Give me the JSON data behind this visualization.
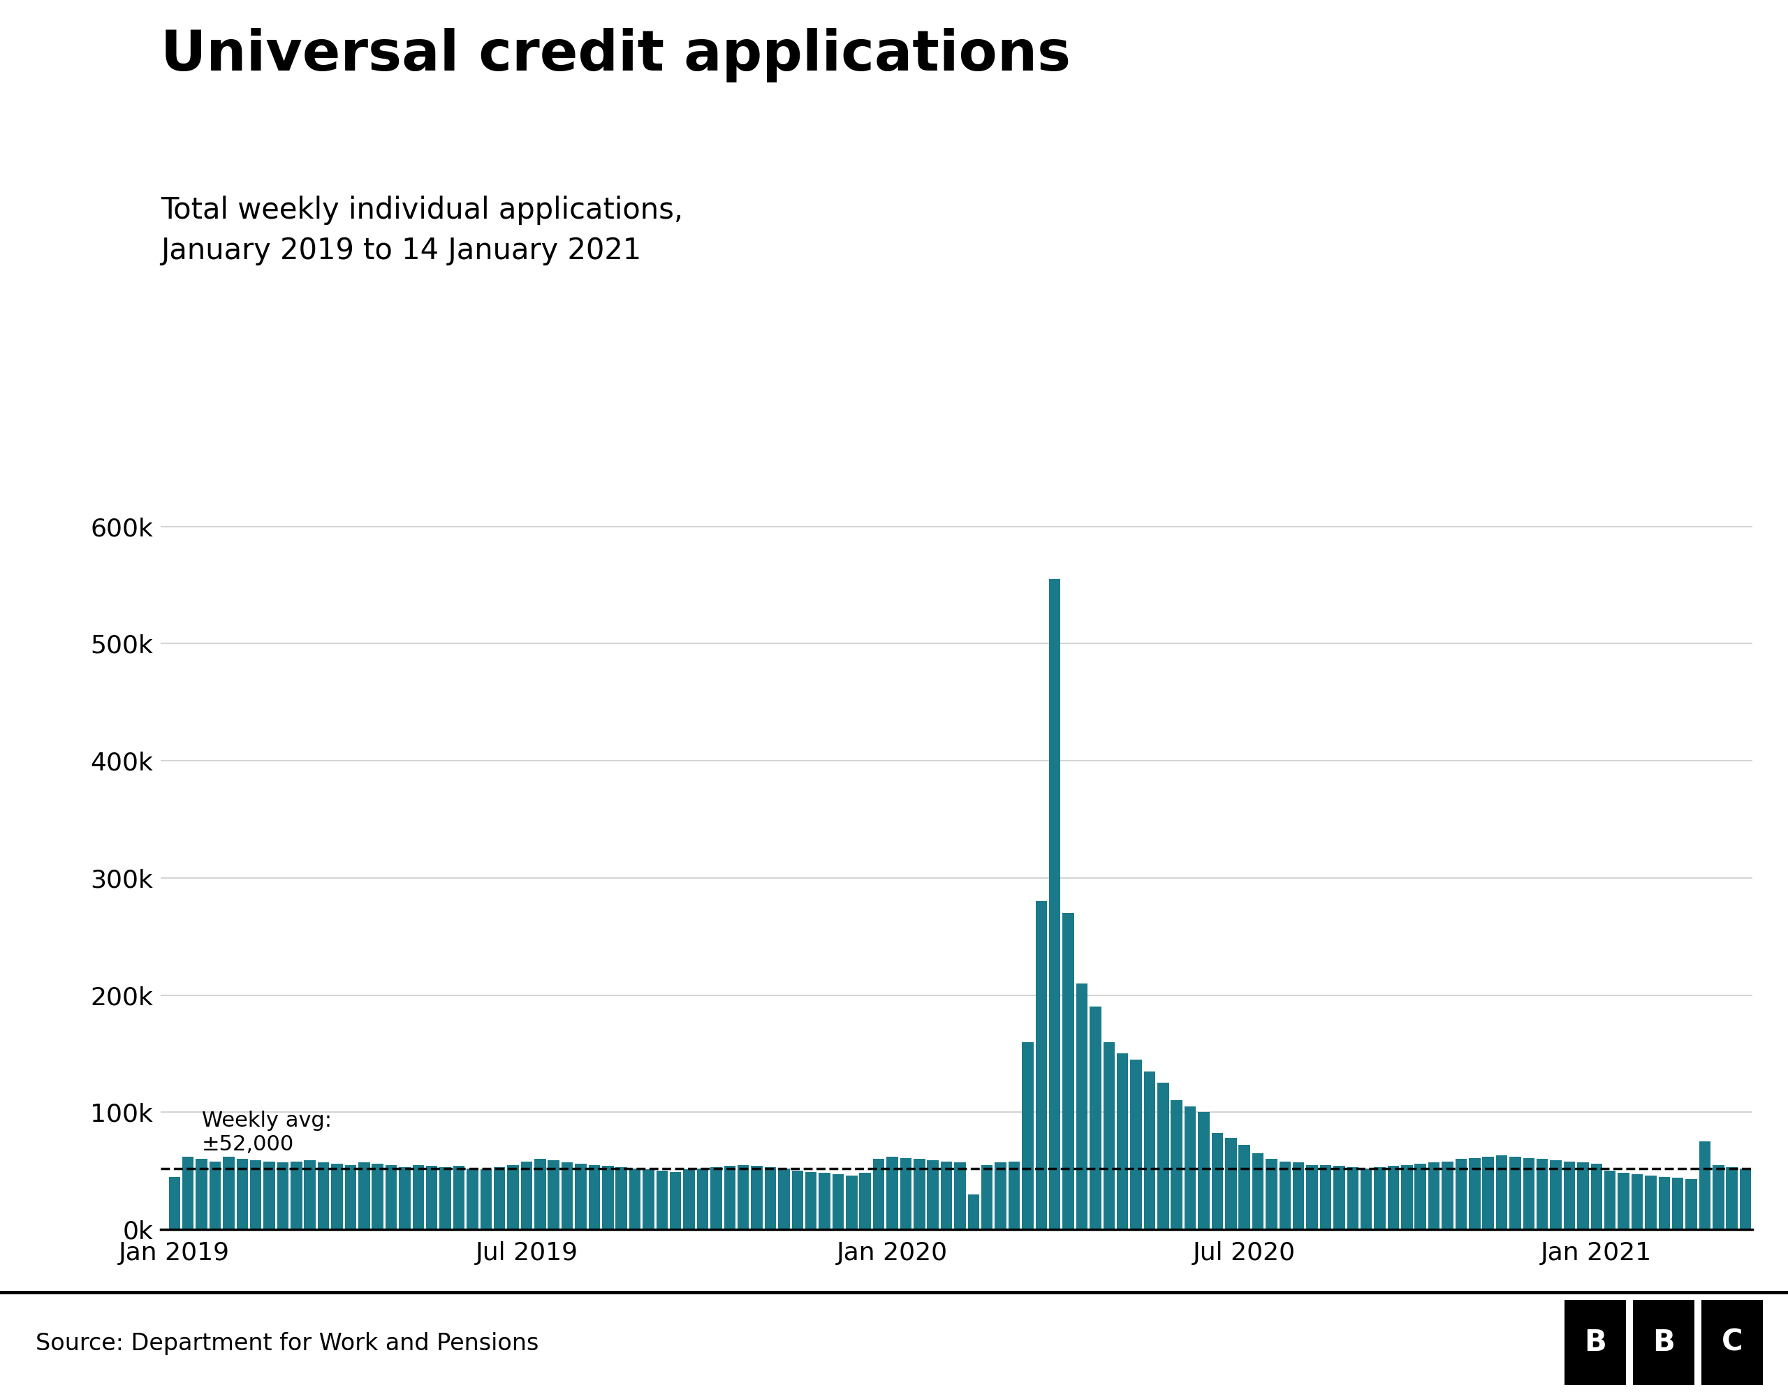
{
  "title": "Universal credit applications",
  "subtitle": "Total weekly individual applications,\nJanuary 2019 to 14 January 2021",
  "source": "Source: Department for Work and Pensions",
  "bar_color": "#1a7a8a",
  "avg_line_value": 52000,
  "avg_label": "Weekly avg:\n±52,000",
  "ylim": [
    0,
    620000
  ],
  "yticks": [
    0,
    100000,
    200000,
    300000,
    400000,
    500000,
    600000
  ],
  "background_color": "#ffffff",
  "weekly_values": [
    45000,
    62000,
    60000,
    58000,
    62000,
    60000,
    59000,
    58000,
    57000,
    58000,
    59000,
    57000,
    56000,
    55000,
    57000,
    56000,
    55000,
    53000,
    55000,
    54000,
    53000,
    54000,
    52000,
    51000,
    53000,
    55000,
    58000,
    60000,
    59000,
    57000,
    56000,
    55000,
    54000,
    53000,
    52000,
    51000,
    50000,
    49000,
    51000,
    52000,
    53000,
    54000,
    55000,
    54000,
    53000,
    52000,
    50000,
    49000,
    48000,
    47000,
    46000,
    48000,
    60000,
    62000,
    61000,
    60000,
    59000,
    58000,
    57000,
    30000,
    55000,
    57000,
    58000,
    160000,
    280000,
    555000,
    270000,
    210000,
    190000,
    160000,
    150000,
    145000,
    135000,
    125000,
    110000,
    105000,
    100000,
    82000,
    78000,
    72000,
    65000,
    60000,
    58000,
    57000,
    55000,
    55000,
    54000,
    53000,
    52000,
    53000,
    54000,
    55000,
    56000,
    57000,
    58000,
    60000,
    61000,
    62000,
    63000,
    62000,
    61000,
    60000,
    59000,
    58000,
    57000,
    56000,
    50000,
    48000,
    47000,
    46000,
    45000,
    44000,
    43000,
    75000,
    55000,
    53000,
    52000
  ],
  "x_tick_labels": [
    "Jan 2019",
    "Jul 2019",
    "Jan 2020",
    "Jul 2020",
    "Jan 2021"
  ],
  "x_tick_positions": [
    0,
    26,
    53,
    79,
    105
  ],
  "title_fontsize": 58,
  "subtitle_fontsize": 30,
  "tick_fontsize": 26,
  "source_fontsize": 24,
  "avg_fontsize": 22
}
